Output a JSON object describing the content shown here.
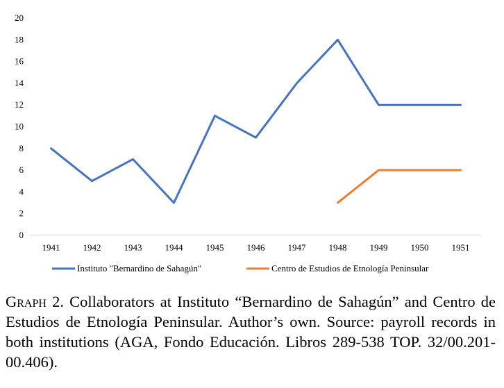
{
  "chart_data": {
    "type": "line",
    "x": [
      "1941",
      "1942",
      "1943",
      "1944",
      "1945",
      "1946",
      "1947",
      "1948",
      "1949",
      "1950",
      "1951"
    ],
    "ylim": [
      0,
      20
    ],
    "yticks": [
      0,
      2,
      4,
      6,
      8,
      10,
      12,
      14,
      16,
      18,
      20
    ],
    "grid": false,
    "legend_position": "bottom",
    "series": [
      {
        "name": "Instituto \"Bernardino de Sahagún\"",
        "color": "#4472C4",
        "values": [
          8,
          5,
          7,
          3,
          11,
          9,
          14,
          18,
          12,
          12,
          12
        ]
      },
      {
        "name": "Centro de Estudios de Etnología Peninsular",
        "color": "#ED7D31",
        "values": [
          null,
          null,
          null,
          null,
          null,
          null,
          null,
          3,
          6,
          6,
          6
        ]
      }
    ]
  },
  "caption": {
    "label": "Graph 2.",
    "text": "Collaborators at Instituto “Bernardino de Sahagún” and Centro de Estudios de Etnología Peninsular. Author’s own. Source: payroll records in both institutions (AGA, Fondo Educación. Libros 289-538 TOP. 32/00.201-00.406)."
  }
}
